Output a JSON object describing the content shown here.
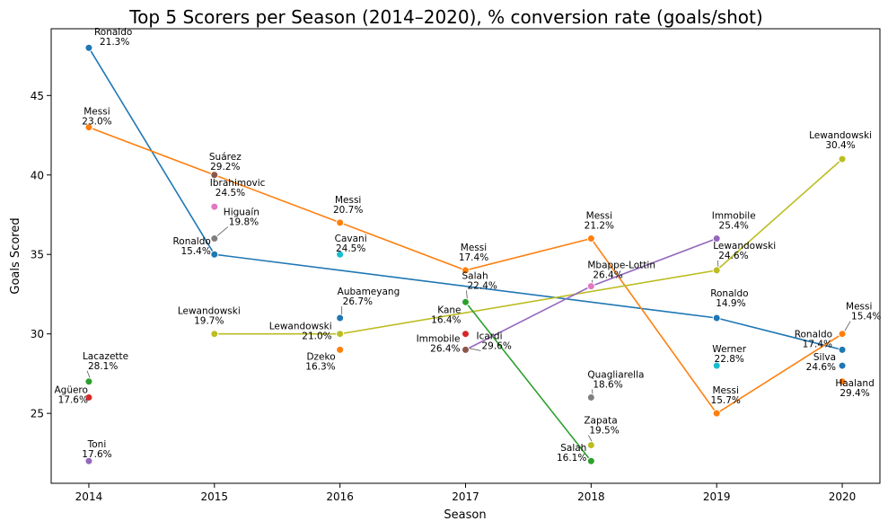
{
  "chart_data": {
    "type": "line",
    "title": "Top 5 Scorers per Season (2014–2020), % conversion rate (goals/shot)",
    "xlabel": "Season",
    "ylabel": "Goals Scored",
    "x_ticks": [
      "2014",
      "2015",
      "2016",
      "2017",
      "2018",
      "2019",
      "2020"
    ],
    "y_ticks": [
      "25",
      "30",
      "35",
      "40",
      "45"
    ],
    "xlim": [
      2013.7,
      2020.3
    ],
    "ylim": [
      20.6,
      49.2
    ],
    "grid": false,
    "colors": {
      "blue": "#1f77b4",
      "orange": "#ff7f0e",
      "green": "#2ca02c",
      "red": "#d62728",
      "purple": "#9467bd",
      "brown": "#8c564b",
      "pink": "#e377c2",
      "gray": "#7f7f7f",
      "olive": "#bcbd22",
      "cyan": "#17becf"
    },
    "lines": [
      {
        "color": "#1f77b4",
        "x": [
          2014,
          2015,
          2019,
          2020
        ],
        "y": [
          48,
          35,
          31,
          29
        ]
      },
      {
        "color": "#ff7f0e",
        "x": [
          2014,
          2015,
          2016,
          2017,
          2018,
          2019,
          2020
        ],
        "y": [
          43,
          40,
          37,
          34,
          36,
          25,
          30
        ]
      },
      {
        "color": "#bcbd22",
        "x": [
          2015,
          2016,
          2019,
          2020
        ],
        "y": [
          30,
          30,
          34,
          41
        ]
      },
      {
        "color": "#2ca02c",
        "x": [
          2017,
          2018
        ],
        "y": [
          32,
          22
        ]
      },
      {
        "color": "#9467bd",
        "x": [
          2017,
          2018,
          2019
        ],
        "y": [
          29,
          33,
          36
        ]
      }
    ],
    "points": [
      {
        "x": 2014,
        "y": 48,
        "color": "#1f77b4",
        "name": "Ronaldo",
        "rate": "21.3%"
      },
      {
        "x": 2014,
        "y": 43,
        "color": "#ff7f0e",
        "name": "Messi",
        "rate": "23.0%"
      },
      {
        "x": 2014,
        "y": 27,
        "color": "#2ca02c",
        "name": "Lacazette",
        "rate": "28.1%"
      },
      {
        "x": 2014,
        "y": 26,
        "color": "#d62728",
        "name": "Agüero",
        "rate": "17.6%"
      },
      {
        "x": 2014,
        "y": 22,
        "color": "#9467bd",
        "name": "Toni",
        "rate": "17.6%"
      },
      {
        "x": 2015,
        "y": 40,
        "color": "#8c564b",
        "name": "Suárez",
        "rate": "29.2%"
      },
      {
        "x": 2015,
        "y": 38,
        "color": "#e377c2",
        "name": "Ibrahimovic",
        "rate": "24.5%"
      },
      {
        "x": 2015,
        "y": 36,
        "color": "#7f7f7f",
        "name": "Higuaín",
        "rate": "19.8%"
      },
      {
        "x": 2015,
        "y": 35,
        "color": "#1f77b4",
        "name": "Ronaldo",
        "rate": "15.4%"
      },
      {
        "x": 2015,
        "y": 30,
        "color": "#bcbd22",
        "name": "Lewandowski",
        "rate": "19.7%"
      },
      {
        "x": 2016,
        "y": 37,
        "color": "#ff7f0e",
        "name": "Messi",
        "rate": "20.7%"
      },
      {
        "x": 2016,
        "y": 35,
        "color": "#17becf",
        "name": "Cavani",
        "rate": "24.5%"
      },
      {
        "x": 2016,
        "y": 31,
        "color": "#1f77b4",
        "name": "Aubameyang",
        "rate": "26.7%"
      },
      {
        "x": 2016,
        "y": 30,
        "color": "#bcbd22",
        "name": "Lewandowski",
        "rate": "21.0%"
      },
      {
        "x": 2016,
        "y": 29,
        "color": "#ff7f0e",
        "name": "Dzeko",
        "rate": "16.3%"
      },
      {
        "x": 2017,
        "y": 34,
        "color": "#ff7f0e",
        "name": "Messi",
        "rate": "17.4%"
      },
      {
        "x": 2017,
        "y": 32,
        "color": "#2ca02c",
        "name": "Salah",
        "rate": "22.4%"
      },
      {
        "x": 2017,
        "y": 30,
        "color": "#d62728",
        "name": "Kane",
        "rate": "16.4%"
      },
      {
        "x": 2017,
        "y": 29,
        "color": "#9467bd",
        "name": "Icardi",
        "rate": "29.6%"
      },
      {
        "x": 2017,
        "y": 29,
        "color": "#8c564b",
        "name": "Immobile",
        "rate": "26.4%"
      },
      {
        "x": 2018,
        "y": 36,
        "color": "#ff7f0e",
        "name": "Messi",
        "rate": "21.2%"
      },
      {
        "x": 2018,
        "y": 33,
        "color": "#e377c2",
        "name": "Mbappe-Lottin",
        "rate": "26.4%"
      },
      {
        "x": 2018,
        "y": 26,
        "color": "#7f7f7f",
        "name": "Quagliarella",
        "rate": "18.6%"
      },
      {
        "x": 2018,
        "y": 23,
        "color": "#bcbd22",
        "name": "Zapata",
        "rate": "19.5%"
      },
      {
        "x": 2018,
        "y": 22,
        "color": "#2ca02c",
        "name": "Salah",
        "rate": "16.1%"
      },
      {
        "x": 2019,
        "y": 36,
        "color": "#9467bd",
        "name": "Immobile",
        "rate": "25.4%"
      },
      {
        "x": 2019,
        "y": 34,
        "color": "#bcbd22",
        "name": "Lewandowski",
        "rate": "24.6%"
      },
      {
        "x": 2019,
        "y": 31,
        "color": "#1f77b4",
        "name": "Ronaldo",
        "rate": "14.9%"
      },
      {
        "x": 2019,
        "y": 28,
        "color": "#17becf",
        "name": "Werner",
        "rate": "22.8%"
      },
      {
        "x": 2019,
        "y": 25,
        "color": "#ff7f0e",
        "name": "Messi",
        "rate": "15.7%"
      },
      {
        "x": 2020,
        "y": 41,
        "color": "#bcbd22",
        "name": "Lewandowski",
        "rate": "30.4%"
      },
      {
        "x": 2020,
        "y": 30,
        "color": "#ff7f0e",
        "name": "Messi",
        "rate": "15.4%"
      },
      {
        "x": 2020,
        "y": 29,
        "color": "#1f77b4",
        "name": "Ronaldo",
        "rate": "17.4%"
      },
      {
        "x": 2020,
        "y": 28,
        "color": "#1f77b4",
        "name": "Silva",
        "rate": "24.6%"
      },
      {
        "x": 2020,
        "y": 27,
        "color": "#ff7f0e",
        "name": "Haaland",
        "rate": "29.4%"
      }
    ]
  }
}
